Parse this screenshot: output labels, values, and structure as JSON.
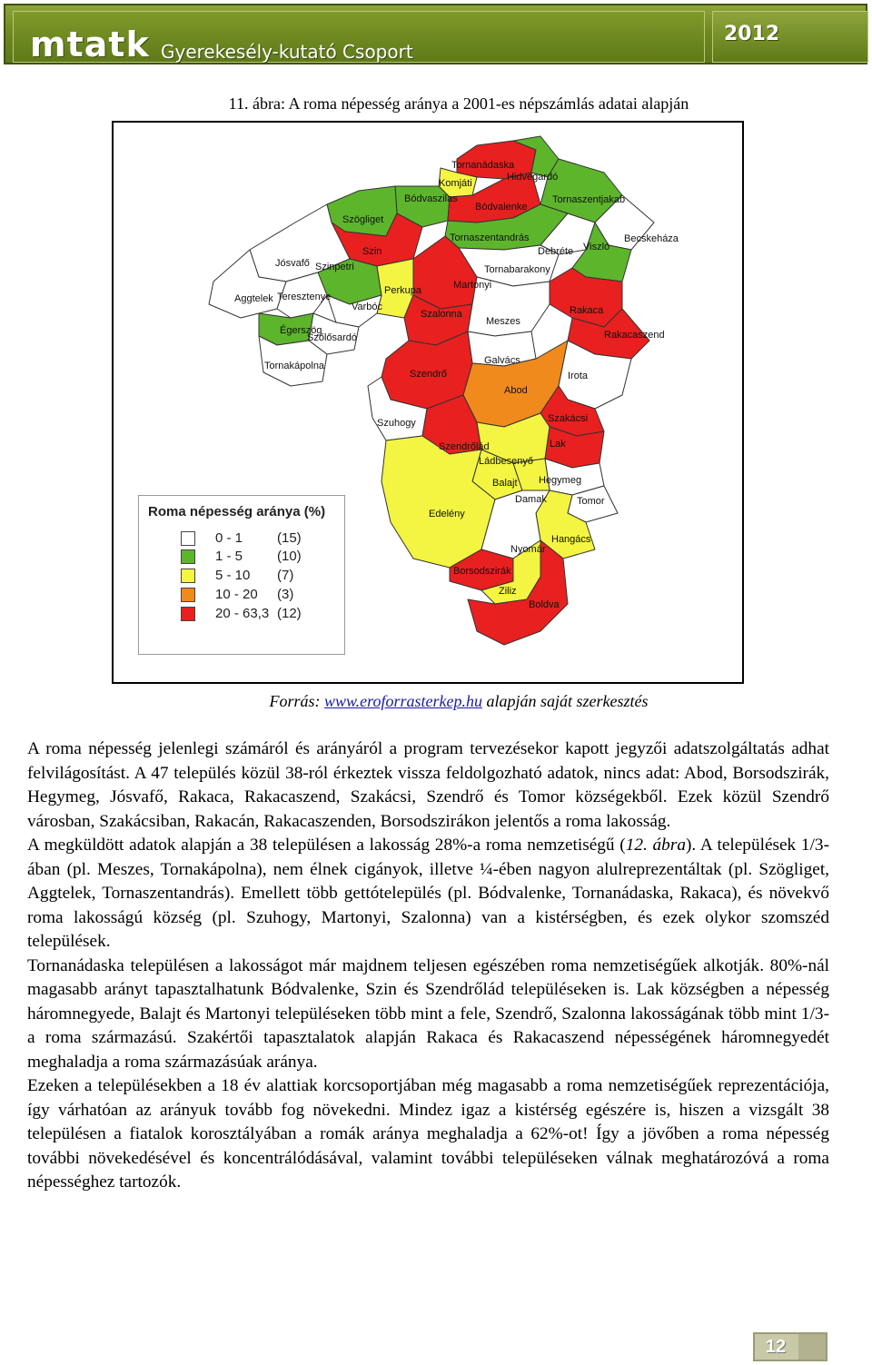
{
  "header": {
    "logo": "mtatk",
    "subtitle": "Gyerekesély-kutató Csoport",
    "year": "2012"
  },
  "figure": {
    "caption": "11.  ábra: A roma népesség aránya a 2001-es népszámlás adatai alapján",
    "legend": {
      "title": "Roma népesség aránya (%)",
      "items": [
        {
          "range": "0 - 1",
          "count": "(15)",
          "color": "#ffffff"
        },
        {
          "range": "1 - 5",
          "count": "(10)",
          "color": "#5db52b"
        },
        {
          "range": "5 - 10",
          "count": "(7)",
          "color": "#f3f542"
        },
        {
          "range": "10 - 20",
          "count": "(3)",
          "color": "#f08a1c"
        },
        {
          "range": "20 - 63,3",
          "count": "(12)",
          "color": "#e8201f"
        }
      ]
    },
    "places": [
      "Tornanádaska",
      "Hidvégardó",
      "Komjáti",
      "Bódvaszilas",
      "Tornaszentjakab",
      "Bódvalenke",
      "Szögliget",
      "Tornaszentandrás",
      "Becskeháza",
      "Debréte",
      "Viszló",
      "Szin",
      "Jósvafő",
      "Szinpetri",
      "Tornabarakony",
      "Aggtelek",
      "Teresztenye",
      "Perkupa",
      "Martonyi",
      "Rakaca",
      "Varbóc",
      "Szalonna",
      "Meszes",
      "Rakacaszend",
      "Égerszög",
      "Szőlősardó",
      "Tornakápolna",
      "Galvács",
      "Szendrő",
      "Abod",
      "Irota",
      "Szuhogy",
      "Szakácsi",
      "Szendrőlád",
      "Lak",
      "Ládbesenyő",
      "Balajt",
      "Hegymeg",
      "Damak",
      "Tomor",
      "Edelény",
      "Hangács",
      "Nyomár",
      "Borsodszirák",
      "Ziliz",
      "Boldva"
    ],
    "source_prefix": "Forrás: ",
    "source_link": "www.eroforrasterkep.hu",
    "source_suffix": " alapján saját szerkesztés"
  },
  "body": {
    "p1": "A roma népesség jelenlegi számáról és arányáról a program tervezésekor kapott jegyzői adatszolgáltatás adhat felvilágosítást. A 47 település közül 38-ról érkeztek vissza feldolgozható adatok, nincs adat: Abod, Borsodszirák, Hegymeg, Jósvafő, Rakaca, Rakacaszend, Szakácsi, Szendrő és Tomor községekből. Ezek közül Szendrő városban, Szakácsiban, Rakacán, Rakacaszenden, Borsodszirákon jelentős a roma lakosság.",
    "p2a": "A megküldött adatok alapján a 38 településen a lakosság 28%-a roma nemzetiségű (",
    "p2b": "12. ábra",
    "p2c": "). A települések 1/3-ában (pl. Meszes, Tornakápolna), nem élnek cigányok, illetve ¼-ében nagyon alulreprezentáltak (pl. Szögliget, Aggtelek, Tornaszentandrás). Emellett több gettótelepülés (pl. Bódvalenke, Tornanádaska, Rakaca), és növekvő roma lakosságú község (pl. Szuhogy, Martonyi, Szalonna) van a kistérségben, és ezek olykor szomszéd települések.",
    "p3": "Tornanádaska településen a lakosságot már majdnem teljesen egészében roma nemzetiségűek alkotják. 80%-nál magasabb arányt tapasztalhatunk Bódvalenke, Szin és Szendrőlád településeken is. Lak községben a népesség háromnegyede, Balajt és Martonyi településeken több mint a fele, Szendrő, Szalonna lakosságának több mint 1/3-a roma származású. Szakértői tapasztalatok alapján Rakaca és Rakacaszend népességének háromnegyedét meghaladja a roma származásúak aránya.",
    "p4": "Ezeken a településekben a 18 év alattiak korcsoportjában még magasabb a roma nemzetiségűek reprezentációja, így várhatóan az arányuk tovább fog növekedni. Mindez igaz a kistérség egészére is, hiszen a vizsgált 38 településen a fiatalok korosztályában a romák aránya meghaladja a 62%-ot! Így a jövőben a roma népesség további növekedésével és koncentrálódásával, valamint további településeken válnak meghatározóvá a roma népességhez tartozók."
  },
  "footer": {
    "page_number": "12"
  }
}
